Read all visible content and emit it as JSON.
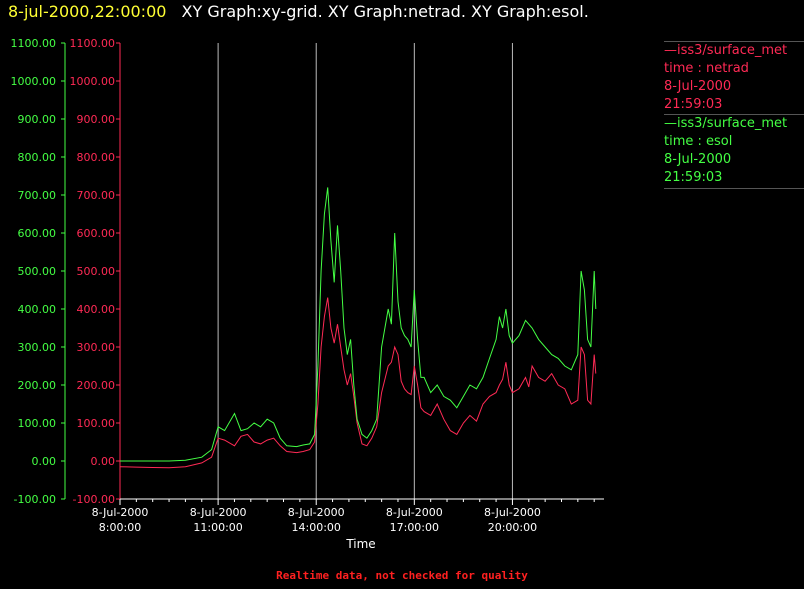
{
  "header": {
    "timestamp": "8-jul-2000,22:00:00",
    "graphs_title": "XY Graph:xy-grid.  XY Graph:netrad.  XY Graph:esol."
  },
  "legend": [
    {
      "lines": [
        "—iss3/surface_met",
        "time : netrad",
        "8-Jul-2000",
        "21:59:03"
      ],
      "color": "#ff2a55"
    },
    {
      "lines": [
        "—iss3/surface_met",
        "time : esol",
        "8-Jul-2000",
        "21:59:03"
      ],
      "color": "#44ff44"
    }
  ],
  "footer": {
    "note": "Realtime data, not checked for quality"
  },
  "chart_data": {
    "type": "line",
    "xlabel": "Time",
    "ylabel": "",
    "ylim": [
      -100,
      1100
    ],
    "x_range_hours": [
      8.0,
      22.8
    ],
    "y_ticks": [
      "1100.00",
      "1000.00",
      "900.00",
      "800.00",
      "700.00",
      "600.00",
      "500.00",
      "400.00",
      "300.00",
      "200.00",
      "100.00",
      "0.00",
      "-100.00"
    ],
    "x_ticks": [
      {
        "hour": 8,
        "date": "8-Jul-2000",
        "time": "8:00:00"
      },
      {
        "hour": 11,
        "date": "8-Jul-2000",
        "time": "11:00:00"
      },
      {
        "hour": 14,
        "date": "8-Jul-2000",
        "time": "14:00:00"
      },
      {
        "hour": 17,
        "date": "8-Jul-2000",
        "time": "17:00:00"
      },
      {
        "hour": 20,
        "date": "8-Jul-2000",
        "time": "20:00:00"
      }
    ],
    "vertical_grid_hours": [
      11,
      14,
      17,
      20
    ],
    "series": [
      {
        "name": "netrad",
        "color": "#ff2a55",
        "x": [
          8.0,
          8.5,
          9.0,
          9.5,
          10.0,
          10.5,
          10.8,
          11.0,
          11.2,
          11.5,
          11.7,
          11.9,
          12.1,
          12.3,
          12.5,
          12.7,
          12.9,
          13.1,
          13.4,
          13.6,
          13.8,
          13.95,
          14.05,
          14.15,
          14.25,
          14.35,
          14.45,
          14.55,
          14.65,
          14.75,
          14.85,
          14.95,
          15.05,
          15.15,
          15.25,
          15.4,
          15.55,
          15.7,
          15.85,
          16.0,
          16.2,
          16.3,
          16.4,
          16.5,
          16.6,
          16.7,
          16.8,
          16.9,
          17.0,
          17.1,
          17.2,
          17.3,
          17.5,
          17.7,
          17.9,
          18.1,
          18.3,
          18.5,
          18.7,
          18.9,
          19.1,
          19.3,
          19.5,
          19.6,
          19.7,
          19.8,
          19.9,
          20.0,
          20.2,
          20.4,
          20.5,
          20.6,
          20.8,
          21.0,
          21.2,
          21.4,
          21.6,
          21.8,
          22.0,
          22.1,
          22.2,
          22.3,
          22.4,
          22.5,
          22.55
        ],
        "values": [
          -15,
          -16,
          -17,
          -18,
          -15,
          -5,
          10,
          60,
          55,
          40,
          65,
          70,
          50,
          45,
          55,
          60,
          40,
          25,
          22,
          25,
          30,
          50,
          150,
          300,
          380,
          430,
          350,
          310,
          360,
          300,
          240,
          200,
          230,
          170,
          100,
          45,
          40,
          60,
          90,
          180,
          250,
          260,
          300,
          280,
          210,
          190,
          180,
          175,
          250,
          200,
          140,
          130,
          120,
          150,
          110,
          80,
          70,
          100,
          120,
          105,
          150,
          170,
          180,
          200,
          215,
          260,
          200,
          180,
          190,
          220,
          195,
          250,
          220,
          210,
          230,
          200,
          190,
          150,
          160,
          300,
          280,
          160,
          150,
          280,
          230
        ]
      },
      {
        "name": "esol",
        "color": "#44ff44",
        "x": [
          8.0,
          8.5,
          9.0,
          9.5,
          10.0,
          10.5,
          10.8,
          11.0,
          11.2,
          11.5,
          11.7,
          11.9,
          12.1,
          12.3,
          12.5,
          12.7,
          12.9,
          13.1,
          13.4,
          13.6,
          13.8,
          13.95,
          14.05,
          14.15,
          14.25,
          14.35,
          14.45,
          14.55,
          14.65,
          14.75,
          14.85,
          14.95,
          15.05,
          15.15,
          15.25,
          15.4,
          15.55,
          15.7,
          15.85,
          16.0,
          16.2,
          16.3,
          16.4,
          16.5,
          16.6,
          16.7,
          16.8,
          16.9,
          17.0,
          17.1,
          17.2,
          17.3,
          17.5,
          17.7,
          17.9,
          18.1,
          18.3,
          18.5,
          18.7,
          18.9,
          19.1,
          19.3,
          19.5,
          19.6,
          19.7,
          19.8,
          19.9,
          20.0,
          20.2,
          20.4,
          20.5,
          20.6,
          20.8,
          21.0,
          21.2,
          21.4,
          21.6,
          21.8,
          22.0,
          22.1,
          22.2,
          22.3,
          22.4,
          22.5,
          22.55
        ],
        "values": [
          0,
          0,
          0,
          0,
          2,
          10,
          30,
          90,
          80,
          125,
          80,
          85,
          100,
          90,
          110,
          100,
          60,
          40,
          38,
          42,
          45,
          70,
          250,
          500,
          650,
          720,
          580,
          470,
          620,
          500,
          350,
          280,
          320,
          200,
          110,
          70,
          60,
          80,
          110,
          300,
          400,
          360,
          600,
          420,
          350,
          330,
          320,
          300,
          450,
          320,
          220,
          220,
          180,
          200,
          170,
          160,
          140,
          170,
          200,
          190,
          220,
          270,
          320,
          380,
          350,
          400,
          330,
          310,
          330,
          370,
          360,
          350,
          320,
          300,
          280,
          270,
          250,
          240,
          280,
          500,
          450,
          320,
          300,
          500,
          400
        ]
      }
    ]
  }
}
